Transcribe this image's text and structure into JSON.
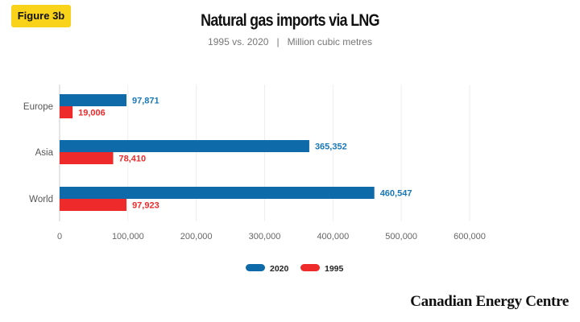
{
  "badge": "Figure 3b",
  "logo": "Canadian Energy Centre",
  "chart_data": {
    "type": "bar",
    "orientation": "horizontal",
    "title": "Natural gas imports via LNG",
    "subtitle_left": "1995 vs. 2020",
    "subtitle_right": "Million cubic metres",
    "categories": [
      "Europe",
      "Asia",
      "World"
    ],
    "series": [
      {
        "name": "2020",
        "values": [
          97871,
          365352,
          460547
        ],
        "labels": [
          "97,871",
          "365,352",
          "460,547"
        ],
        "color": "#0e6aa8"
      },
      {
        "name": "1995",
        "values": [
          19006,
          78410,
          97923
        ],
        "labels": [
          "19,006",
          "78,410",
          "97,923"
        ],
        "color": "#ee2a2a"
      }
    ],
    "xlim": [
      0,
      600000
    ],
    "xticks": [
      0,
      100000,
      200000,
      300000,
      400000,
      500000,
      600000
    ],
    "xtick_labels": [
      "0",
      "100,000",
      "200,000",
      "300,000",
      "400,000",
      "500,000",
      "600,000"
    ],
    "grid": true,
    "legend": "bottom-center"
  }
}
